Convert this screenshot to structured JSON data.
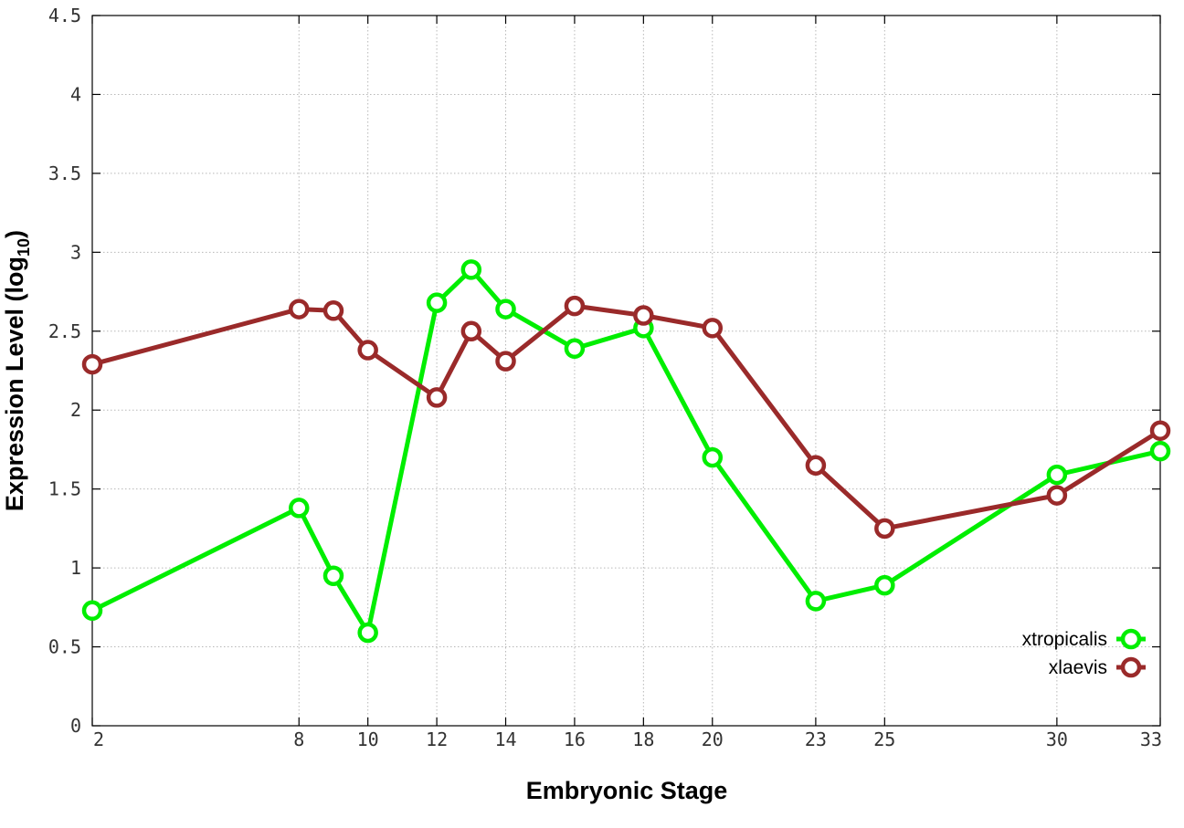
{
  "chart_data": {
    "type": "line",
    "xlabel": "Embryonic Stage",
    "ylabel": "Expression Level (log",
    "ylabel_subscript": "10",
    "ylabel_suffix": ")",
    "xlim": [
      2,
      33
    ],
    "ylim": [
      0,
      4.5
    ],
    "x_ticks": [
      2,
      8,
      10,
      12,
      14,
      16,
      18,
      20,
      23,
      25,
      30,
      33
    ],
    "y_ticks": [
      0,
      0.5,
      1,
      1.5,
      2,
      2.5,
      3,
      3.5,
      4,
      4.5
    ],
    "y_tick_labels": [
      "0",
      "0.5",
      "1",
      "1.5",
      "2",
      "2.5",
      "3",
      "3.5",
      "4",
      "4.5"
    ],
    "grid": true,
    "legend_position": "bottom-right",
    "x": [
      2,
      8,
      9,
      10,
      12,
      13,
      14,
      16,
      18,
      20,
      23,
      25,
      30,
      33
    ],
    "series": [
      {
        "name": "xtropicalis",
        "color": "#00ee00",
        "values": [
          0.73,
          1.38,
          0.95,
          0.59,
          2.68,
          2.89,
          2.64,
          2.39,
          2.52,
          1.7,
          0.79,
          0.89,
          1.59,
          1.74
        ]
      },
      {
        "name": "xlaevis",
        "color": "#9a2a2a",
        "values": [
          2.29,
          2.64,
          2.63,
          2.38,
          2.08,
          2.5,
          2.31,
          2.66,
          2.6,
          2.52,
          1.65,
          1.25,
          1.46,
          1.87
        ]
      }
    ]
  }
}
